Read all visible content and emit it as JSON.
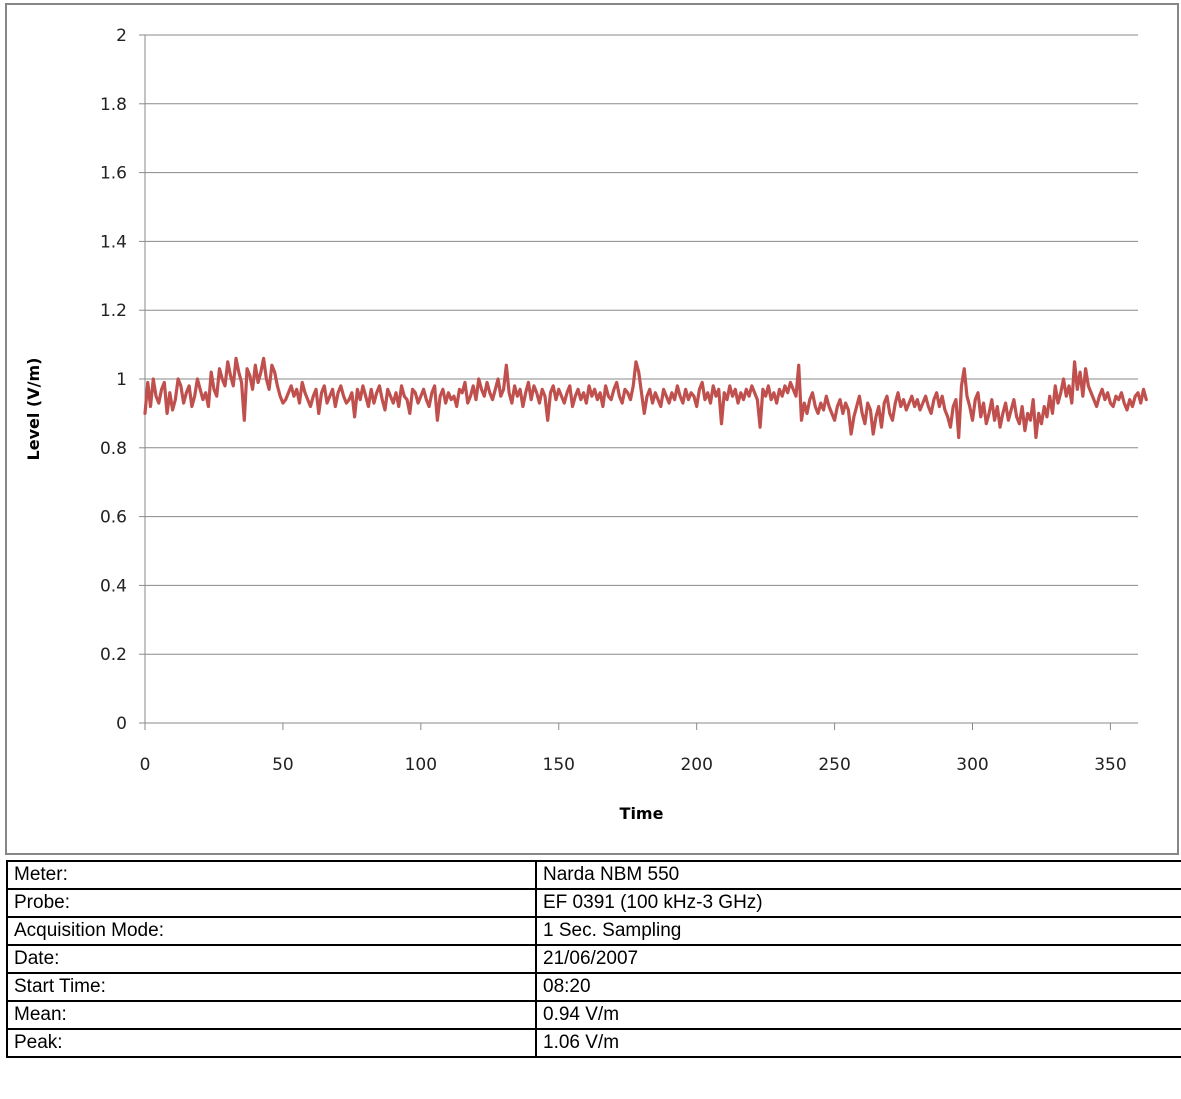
{
  "chart_data": {
    "type": "line",
    "xlabel": "Time",
    "ylabel": "Level (V/m)",
    "xlim": [
      0,
      360
    ],
    "ylim": [
      0,
      2
    ],
    "x_ticks": [
      "0",
      "50",
      "100",
      "150",
      "200",
      "250",
      "300",
      "350"
    ],
    "y_ticks": [
      "0",
      "0.2",
      "0.4",
      "0.6",
      "0.8",
      "1",
      "1.2",
      "1.4",
      "1.6",
      "1.8",
      "2"
    ],
    "grid": "horizontal",
    "legend": "none",
    "line_color": "#c0504d",
    "series": [
      {
        "x_start": 0,
        "x_step": 1,
        "values": [
          0.9,
          0.99,
          0.92,
          1.0,
          0.95,
          0.93,
          0.97,
          0.99,
          0.9,
          0.96,
          0.91,
          0.94,
          1.0,
          0.98,
          0.93,
          0.96,
          0.98,
          0.92,
          0.95,
          1.0,
          0.97,
          0.94,
          0.96,
          0.92,
          1.02,
          0.97,
          0.95,
          1.03,
          1.0,
          0.98,
          1.05,
          1.01,
          0.98,
          1.06,
          1.02,
          0.99,
          0.88,
          1.03,
          1.01,
          0.97,
          1.04,
          0.99,
          1.02,
          1.06,
          1.0,
          0.97,
          1.04,
          1.02,
          0.98,
          0.95,
          0.93,
          0.94,
          0.96,
          0.98,
          0.95,
          0.97,
          0.93,
          0.99,
          0.96,
          0.94,
          0.92,
          0.95,
          0.97,
          0.9,
          0.96,
          0.98,
          0.93,
          0.95,
          0.97,
          0.92,
          0.96,
          0.98,
          0.95,
          0.93,
          0.94,
          0.96,
          0.89,
          0.97,
          0.94,
          0.98,
          0.95,
          0.92,
          0.97,
          0.93,
          0.96,
          0.98,
          0.94,
          0.91,
          0.97,
          0.95,
          0.93,
          0.96,
          0.92,
          0.98,
          0.95,
          0.94,
          0.9,
          0.97,
          0.96,
          0.93,
          0.95,
          0.97,
          0.94,
          0.92,
          0.96,
          0.98,
          0.88,
          0.95,
          0.97,
          0.93,
          0.96,
          0.94,
          0.95,
          0.92,
          0.97,
          0.96,
          0.99,
          0.93,
          0.95,
          0.98,
          0.94,
          1.0,
          0.97,
          0.95,
          0.99,
          0.96,
          0.94,
          0.97,
          1.0,
          0.95,
          0.97,
          1.04,
          0.96,
          0.93,
          0.98,
          0.95,
          0.97,
          0.92,
          0.96,
          0.99,
          0.94,
          0.98,
          0.96,
          0.93,
          0.97,
          0.95,
          0.88,
          0.96,
          0.98,
          0.94,
          0.97,
          0.95,
          0.93,
          0.96,
          0.98,
          0.92,
          0.95,
          0.97,
          0.94,
          0.96,
          0.93,
          0.98,
          0.95,
          0.97,
          0.94,
          0.96,
          0.92,
          0.98,
          0.95,
          0.94,
          0.97,
          0.99,
          0.95,
          0.93,
          0.97,
          0.96,
          0.94,
          0.98,
          1.05,
          1.02,
          0.96,
          0.9,
          0.95,
          0.97,
          0.93,
          0.96,
          0.94,
          0.92,
          0.97,
          0.95,
          0.93,
          0.96,
          0.94,
          0.98,
          0.95,
          0.93,
          0.97,
          0.94,
          0.96,
          0.95,
          0.92,
          0.97,
          0.99,
          0.94,
          0.96,
          0.93,
          0.98,
          0.95,
          0.97,
          0.87,
          0.96,
          0.94,
          0.98,
          0.95,
          0.97,
          0.93,
          0.96,
          0.94,
          0.97,
          0.95,
          0.98,
          0.96,
          0.94,
          0.86,
          0.97,
          0.95,
          0.98,
          0.94,
          0.96,
          0.93,
          0.97,
          0.95,
          0.98,
          0.96,
          0.99,
          0.97,
          0.95,
          1.04,
          0.88,
          0.93,
          0.9,
          0.94,
          0.96,
          0.92,
          0.9,
          0.93,
          0.91,
          0.95,
          0.92,
          0.9,
          0.88,
          0.92,
          0.94,
          0.9,
          0.93,
          0.91,
          0.84,
          0.89,
          0.92,
          0.95,
          0.9,
          0.87,
          0.93,
          0.91,
          0.84,
          0.89,
          0.92,
          0.86,
          0.93,
          0.95,
          0.9,
          0.88,
          0.93,
          0.96,
          0.92,
          0.94,
          0.91,
          0.93,
          0.95,
          0.92,
          0.94,
          0.91,
          0.93,
          0.95,
          0.92,
          0.9,
          0.94,
          0.96,
          0.92,
          0.95,
          0.91,
          0.89,
          0.86,
          0.92,
          0.94,
          0.83,
          0.98,
          1.03,
          0.95,
          0.92,
          0.88,
          0.94,
          0.96,
          0.89,
          0.93,
          0.87,
          0.9,
          0.94,
          0.88,
          0.92,
          0.86,
          0.9,
          0.93,
          0.88,
          0.91,
          0.94,
          0.89,
          0.87,
          0.92,
          0.85,
          0.9,
          0.88,
          0.94,
          0.83,
          0.9,
          0.87,
          0.92,
          0.89,
          0.95,
          0.9,
          0.98,
          0.93,
          0.96,
          1.0,
          0.95,
          0.98,
          0.93,
          1.05,
          0.97,
          1.02,
          0.95,
          1.03,
          0.98,
          0.96,
          0.94,
          0.92,
          0.95,
          0.97,
          0.94,
          0.96,
          0.93,
          0.92,
          0.95,
          0.94,
          0.96,
          0.93,
          0.91,
          0.94,
          0.92,
          0.95,
          0.96,
          0.93,
          0.97,
          0.94
        ]
      }
    ]
  },
  "info_table": [
    {
      "label": "Meter:",
      "value": "Narda NBM 550"
    },
    {
      "label": "Probe:",
      "value": "EF 0391 (100 kHz-3 GHz)"
    },
    {
      "label": "Acquisition Mode:",
      "value": "1 Sec. Sampling"
    },
    {
      "label": "Date:",
      "value": "21/06/2007"
    },
    {
      "label": "Start Time:",
      "value": "08:20"
    },
    {
      "label": "Mean:",
      "value": "0.94 V/m"
    },
    {
      "label": "Peak:",
      "value": "1.06 V/m"
    }
  ]
}
